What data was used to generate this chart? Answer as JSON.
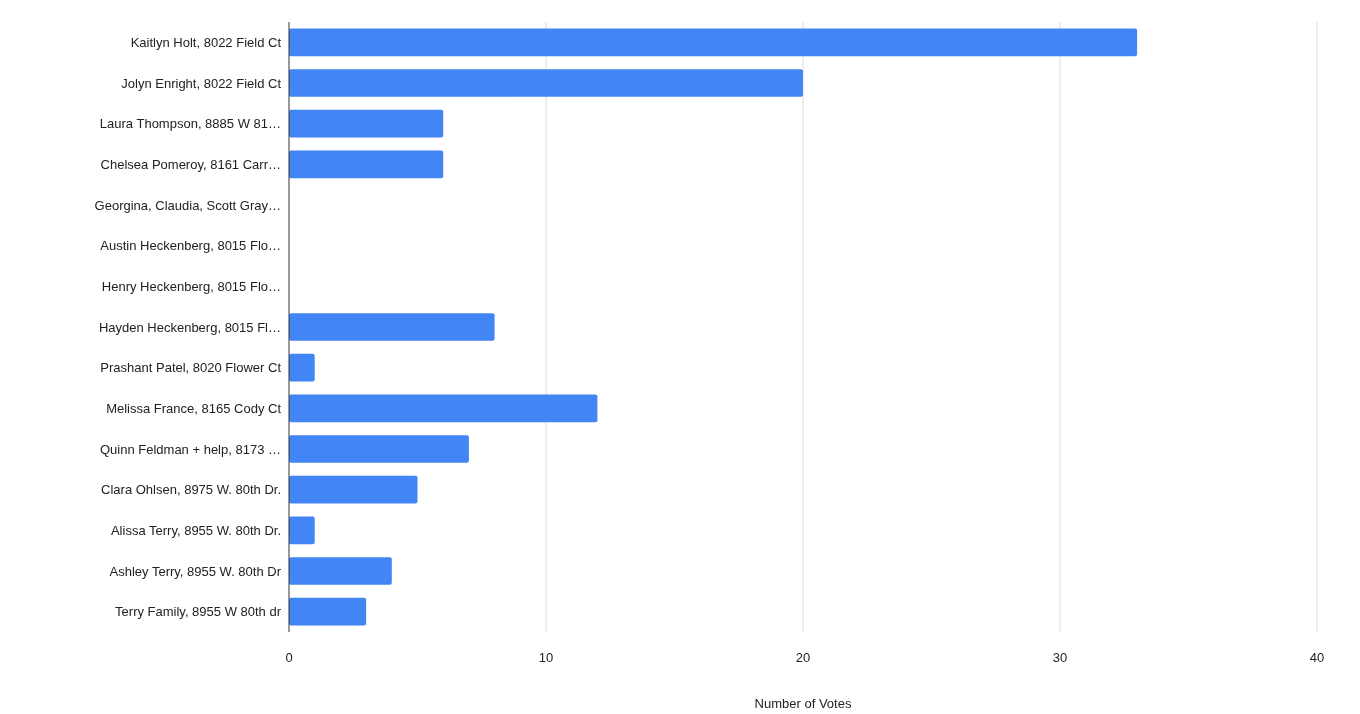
{
  "chart_data": {
    "type": "bar",
    "orientation": "horizontal",
    "xlabel": "Number of Votes",
    "categories": [
      "Kaitlyn Holt, 8022 Field Ct",
      "Jolyn Enright, 8022 Field Ct",
      "Laura Thompson, 8885 W 81…",
      "Chelsea Pomeroy, 8161 Carr…",
      "Georgina, Claudia, Scott Gray…",
      "Austin Heckenberg, 8015 Flo…",
      "Henry Heckenberg, 8015 Flo…",
      "Hayden Heckenberg, 8015 Fl…",
      "Prashant Patel, 8020 Flower Ct",
      "Melissa France, 8165 Cody Ct",
      "Quinn Feldman + help, 8173 …",
      "Clara Ohlsen, 8975 W. 80th Dr.",
      "Alissa Terry, 8955 W. 80th Dr.",
      "Ashley Terry, 8955 W. 80th Dr",
      "Terry Family, 8955 W 80th dr"
    ],
    "values": [
      33,
      20,
      6,
      6,
      0,
      0,
      0,
      8,
      1,
      12,
      7,
      5,
      1,
      4,
      3
    ],
    "color": "#4285f4",
    "xlim": [
      0,
      40
    ],
    "xticks": [
      0,
      10,
      20,
      30,
      40
    ],
    "grid": "x"
  }
}
